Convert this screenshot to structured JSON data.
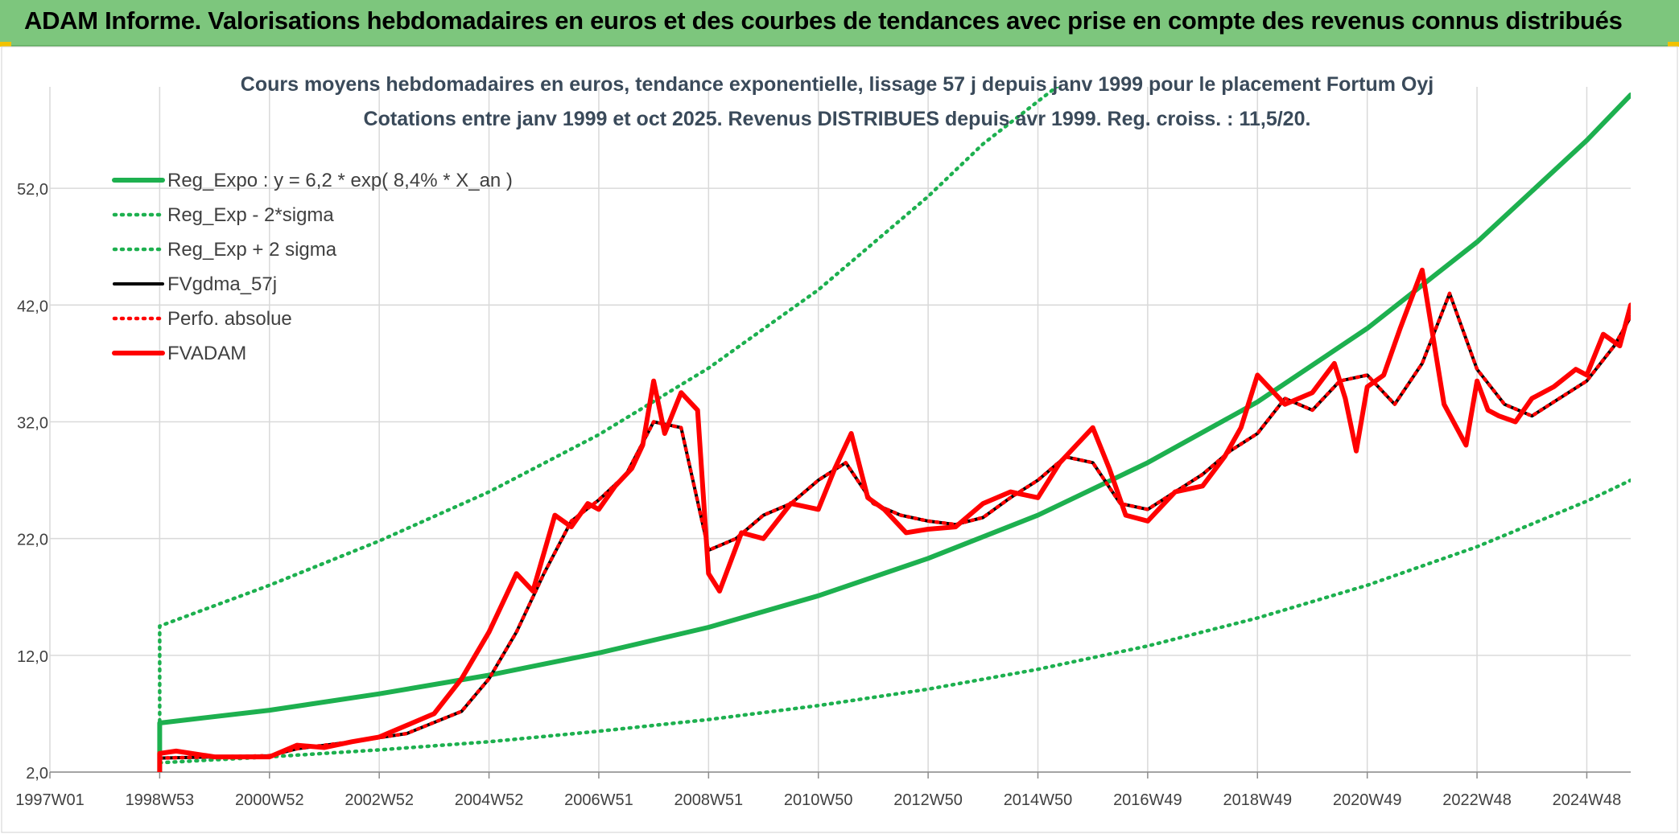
{
  "banner": {
    "title": "ADAM Informe. Valorisations hebdomadaires en euros et des courbes de tendances avec prise en compte des revenus connus distribués",
    "color": "#7dc67d"
  },
  "chart_data": {
    "type": "line",
    "title_line1": "Cours moyens hebdomadaires en euros, tendance exponentielle, lissage 57 j depuis janv 1999 pour le placement Fortum Oyj",
    "title_line2": "Cotations entre janv 1999 et oct 2025. Revenus DISTRIBUES depuis avr 1999. Reg. croiss. : 11,5/20.",
    "xlabel": "",
    "ylabel": "",
    "xlim": [
      1997.0,
      2025.8
    ],
    "ylim": [
      2.0,
      60.0
    ],
    "x_ticks": [
      {
        "label": "1997W01",
        "x": 1997.0
      },
      {
        "label": "1998W53",
        "x": 1999.0
      },
      {
        "label": "2000W52",
        "x": 2001.0
      },
      {
        "label": "2002W52",
        "x": 2003.0
      },
      {
        "label": "2004W52",
        "x": 2005.0
      },
      {
        "label": "2006W51",
        "x": 2007.0
      },
      {
        "label": "2008W51",
        "x": 2009.0
      },
      {
        "label": "2010W50",
        "x": 2011.0
      },
      {
        "label": "2012W50",
        "x": 2013.0
      },
      {
        "label": "2014W50",
        "x": 2015.0
      },
      {
        "label": "2016W49",
        "x": 2017.0
      },
      {
        "label": "2018W49",
        "x": 2019.0
      },
      {
        "label": "2020W49",
        "x": 2021.0
      },
      {
        "label": "2022W48",
        "x": 2023.0
      },
      {
        "label": "2024W48",
        "x": 2025.0
      }
    ],
    "y_ticks": [
      {
        "label": "2,0",
        "y": 2.0
      },
      {
        "label": "12,0",
        "y": 12.0
      },
      {
        "label": "22,0",
        "y": 22.0
      },
      {
        "label": "32,0",
        "y": 32.0
      },
      {
        "label": "42,0",
        "y": 42.0
      },
      {
        "label": "52,0",
        "y": 52.0
      }
    ],
    "grid": true,
    "legend_position": "top-left",
    "series": [
      {
        "name": "Reg_Expo : y = 6,2 * exp( 8,4% *  X_an )",
        "style": "solid-thick",
        "color": "#1db04f",
        "x": [
          1999.0,
          1999.0,
          2001.0,
          2003.0,
          2005.0,
          2007.0,
          2009.0,
          2011.0,
          2013.0,
          2015.0,
          2017.0,
          2019.0,
          2021.0,
          2023.0,
          2025.0,
          2025.8
        ],
        "y": [
          2.0,
          6.2,
          7.3,
          8.7,
          10.3,
          12.2,
          14.4,
          17.1,
          20.3,
          24.0,
          28.5,
          33.7,
          40.0,
          47.4,
          56.1,
          60.0
        ]
      },
      {
        "name": "Reg_Exp - 2*sigma",
        "style": "dotted",
        "color": "#1db04f",
        "x": [
          1999.0,
          2001.0,
          2003.0,
          2005.0,
          2007.0,
          2009.0,
          2011.0,
          2013.0,
          2015.0,
          2017.0,
          2019.0,
          2021.0,
          2023.0,
          2025.0,
          2025.8
        ],
        "y": [
          2.8,
          3.3,
          3.9,
          4.6,
          5.5,
          6.5,
          7.7,
          9.1,
          10.8,
          12.8,
          15.2,
          18.0,
          21.3,
          25.2,
          27.0
        ]
      },
      {
        "name": "Reg_Exp + 2 sigma",
        "style": "dotted",
        "color": "#1db04f",
        "x": [
          1999.0,
          1999.0,
          2001.0,
          2003.0,
          2005.0,
          2007.0,
          2009.0,
          2011.0,
          2013.0,
          2014.0,
          2015.7
        ],
        "y": [
          2.0,
          14.5,
          18.0,
          21.8,
          26.0,
          30.9,
          36.6,
          43.3,
          51.3,
          55.8,
          62.0
        ]
      },
      {
        "name": "FVgdma_57j",
        "style": "solid",
        "color": "#000000",
        "x": [
          1999.0,
          2000.0,
          2001.0,
          2001.5,
          2002.5,
          2003.5,
          2004.5,
          2005.0,
          2005.5,
          2006.0,
          2006.5,
          2007.0,
          2007.5,
          2008.0,
          2008.5,
          2009.0,
          2009.5,
          2010.0,
          2010.5,
          2011.0,
          2011.5,
          2012.0,
          2012.5,
          2013.0,
          2013.5,
          2014.0,
          2014.5,
          2015.0,
          2015.5,
          2016.0,
          2016.5,
          2017.0,
          2017.5,
          2018.0,
          2018.5,
          2019.0,
          2019.5,
          2020.0,
          2020.5,
          2021.0,
          2021.5,
          2022.0,
          2022.5,
          2023.0,
          2023.5,
          2024.0,
          2024.5,
          2025.0,
          2025.5,
          2025.8
        ],
        "y": [
          3.2,
          3.3,
          3.4,
          4.0,
          4.6,
          5.3,
          7.2,
          10.0,
          14.0,
          19.0,
          23.5,
          25.3,
          27.5,
          32.0,
          31.5,
          21.0,
          22.0,
          24.0,
          25.0,
          27.0,
          28.5,
          25.0,
          24.0,
          23.5,
          23.2,
          23.8,
          25.5,
          27.0,
          29.0,
          28.5,
          25.0,
          24.5,
          26.0,
          27.5,
          29.5,
          31.0,
          34.0,
          33.0,
          35.5,
          36.0,
          33.5,
          37.0,
          43.0,
          36.5,
          33.5,
          32.5,
          34.0,
          35.5,
          38.5,
          41.0
        ]
      },
      {
        "name": "Perfo. absolue",
        "style": "dotted",
        "color": "#ff0000",
        "x": [
          1999.0,
          2000.0,
          2001.0,
          2001.5,
          2002.5,
          2003.5,
          2004.5,
          2005.0,
          2005.5,
          2006.0,
          2006.5,
          2007.0,
          2007.5,
          2008.0,
          2008.5,
          2009.0,
          2009.5,
          2010.0,
          2010.5,
          2011.0,
          2011.5,
          2012.0,
          2012.5,
          2013.0,
          2013.5,
          2014.0,
          2014.5,
          2015.0,
          2015.5,
          2016.0,
          2016.5,
          2017.0,
          2017.5,
          2018.0,
          2018.5,
          2019.0,
          2019.5,
          2020.0,
          2020.5,
          2021.0,
          2021.5,
          2022.0,
          2022.5,
          2023.0,
          2023.5,
          2024.0,
          2024.5,
          2025.0,
          2025.5,
          2025.8
        ],
        "y": [
          3.2,
          3.3,
          3.4,
          4.0,
          4.6,
          5.3,
          7.2,
          10.0,
          14.0,
          19.0,
          23.5,
          25.3,
          27.5,
          32.0,
          31.5,
          21.0,
          22.0,
          24.0,
          25.0,
          27.0,
          28.5,
          25.0,
          24.0,
          23.5,
          23.2,
          23.8,
          25.5,
          27.0,
          29.0,
          28.5,
          25.0,
          24.5,
          26.0,
          27.5,
          29.5,
          31.0,
          34.0,
          33.0,
          35.5,
          36.0,
          33.5,
          37.0,
          43.0,
          36.5,
          33.5,
          32.5,
          34.0,
          35.5,
          38.5,
          41.0
        ]
      },
      {
        "name": "FVADAM",
        "style": "solid-thick",
        "color": "#ff0000",
        "x": [
          1999.0,
          1999.0,
          1999.3,
          2000.0,
          2001.0,
          2001.5,
          2002.0,
          2002.5,
          2003.0,
          2003.5,
          2004.0,
          2004.5,
          2005.0,
          2005.5,
          2005.8,
          2006.2,
          2006.5,
          2006.8,
          2007.0,
          2007.3,
          2007.6,
          2007.8,
          2008.0,
          2008.2,
          2008.5,
          2008.8,
          2009.0,
          2009.2,
          2009.4,
          2009.6,
          2010.0,
          2010.5,
          2011.0,
          2011.3,
          2011.6,
          2011.9,
          2012.2,
          2012.6,
          2013.0,
          2013.5,
          2014.0,
          2014.5,
          2015.0,
          2015.4,
          2015.7,
          2016.0,
          2016.3,
          2016.6,
          2017.0,
          2017.5,
          2018.0,
          2018.4,
          2018.7,
          2019.0,
          2019.5,
          2020.0,
          2020.4,
          2020.6,
          2020.8,
          2021.0,
          2021.3,
          2021.6,
          2022.0,
          2022.4,
          2022.8,
          2023.0,
          2023.2,
          2023.4,
          2023.7,
          2024.0,
          2024.4,
          2024.8,
          2025.0,
          2025.3,
          2025.6,
          2025.8
        ],
        "y": [
          2.0,
          3.6,
          3.8,
          3.3,
          3.3,
          4.3,
          4.1,
          4.6,
          5.0,
          6.0,
          7.0,
          10.0,
          14.0,
          19.0,
          17.5,
          24.0,
          23.0,
          25.0,
          24.5,
          26.5,
          28.0,
          30.0,
          35.5,
          31.0,
          34.5,
          33.0,
          19.0,
          17.5,
          20.0,
          22.5,
          22.0,
          25.0,
          24.5,
          28.0,
          31.0,
          25.5,
          24.5,
          22.5,
          22.8,
          23.0,
          25.0,
          26.0,
          25.5,
          28.5,
          30.0,
          31.5,
          28.0,
          24.0,
          23.5,
          26.0,
          26.5,
          29.0,
          31.5,
          36.0,
          33.5,
          34.5,
          37.0,
          34.0,
          29.5,
          35.0,
          36.0,
          40.0,
          45.0,
          33.5,
          30.0,
          35.5,
          33.0,
          32.5,
          32.0,
          34.0,
          35.0,
          36.5,
          36.0,
          39.5,
          38.5,
          42.0
        ]
      }
    ]
  }
}
